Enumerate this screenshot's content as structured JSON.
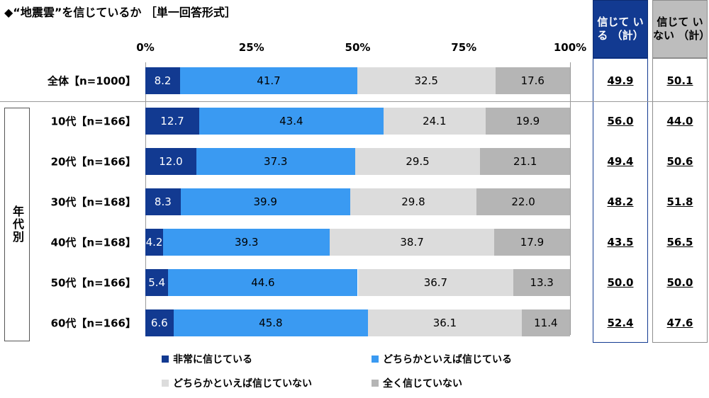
{
  "title": "◆“地震雲”を信じているか ［単一回答形式］",
  "header": {
    "believe_total": "信じて いる （計）",
    "not_believe_total": "信じて いない （計）"
  },
  "group_label": "年代別",
  "colors": {
    "strongly_believe": "#123a91",
    "somewhat_believe": "#3a9af2",
    "somewhat_not": "#dcdcdc",
    "not_at_all": "#b5b5b5"
  },
  "chart_data": {
    "type": "bar",
    "orientation": "horizontal-stacked-100",
    "x_ticks": [
      "0%",
      "25%",
      "50%",
      "75%",
      "100%"
    ],
    "xlim": [
      0,
      100
    ],
    "categories": [
      "全体【n=1000】",
      "10代【n=166】",
      "20代【n=166】",
      "30代【n=168】",
      "40代【n=168】",
      "50代【n=166】",
      "60代【n=166】"
    ],
    "series": [
      {
        "name": "非常に信じている",
        "values": [
          8.2,
          12.7,
          12.0,
          8.3,
          4.2,
          5.4,
          6.6
        ]
      },
      {
        "name": "どちらかといえば信じている",
        "values": [
          41.7,
          43.4,
          37.3,
          39.9,
          39.3,
          44.6,
          45.8
        ]
      },
      {
        "name": "どちらかといえば信じていない",
        "values": [
          32.5,
          24.1,
          29.5,
          29.8,
          38.7,
          36.7,
          36.1
        ]
      },
      {
        "name": "全く信じていない",
        "values": [
          17.6,
          19.9,
          21.1,
          22.0,
          17.9,
          13.3,
          11.4
        ]
      }
    ],
    "totals_believe": [
      "49.9",
      "56.0",
      "49.4",
      "48.2",
      "43.5",
      "50.0",
      "52.4"
    ],
    "totals_not_believe": [
      "50.1",
      "44.0",
      "50.6",
      "51.8",
      "56.5",
      "50.0",
      "47.6"
    ],
    "legend_position": "bottom"
  }
}
